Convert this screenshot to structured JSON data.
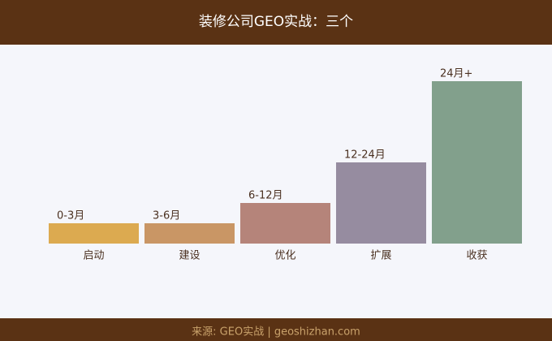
{
  "chart_data": {
    "type": "bar",
    "title": "装修公司GEO实战：三个",
    "categories": [
      "启动",
      "建设",
      "优化",
      "扩展",
      "收获"
    ],
    "bar_labels": [
      "0-3月",
      "3-6月",
      "6-12月",
      "12-24月",
      "24月+"
    ],
    "values": [
      25,
      25,
      50,
      100,
      200
    ],
    "colors": [
      "#dcaa50",
      "#c99665",
      "#b5847a",
      "#968ca0",
      "#82a08c"
    ],
    "ylim": [
      0,
      200
    ],
    "source": "来源: GEO实战 | geoshizhan.com"
  }
}
